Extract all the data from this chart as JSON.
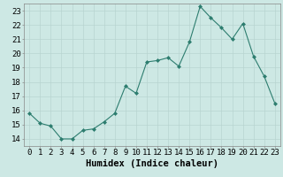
{
  "x": [
    0,
    1,
    2,
    3,
    4,
    5,
    6,
    7,
    8,
    9,
    10,
    11,
    12,
    13,
    14,
    15,
    16,
    17,
    18,
    19,
    20,
    21,
    22,
    23
  ],
  "y": [
    15.8,
    15.1,
    14.9,
    14.0,
    14.0,
    14.6,
    14.7,
    15.2,
    15.8,
    17.7,
    17.2,
    19.4,
    19.5,
    19.7,
    19.1,
    20.8,
    23.3,
    22.5,
    21.8,
    21.0,
    22.1,
    19.8,
    18.4,
    16.5
  ],
  "xlabel": "Humidex (Indice chaleur)",
  "ylim": [
    13.5,
    23.5
  ],
  "xlim": [
    -0.5,
    23.5
  ],
  "yticks": [
    14,
    15,
    16,
    17,
    18,
    19,
    20,
    21,
    22,
    23
  ],
  "xticks": [
    0,
    1,
    2,
    3,
    4,
    5,
    6,
    7,
    8,
    9,
    10,
    11,
    12,
    13,
    14,
    15,
    16,
    17,
    18,
    19,
    20,
    21,
    22,
    23
  ],
  "line_color": "#2d7d6f",
  "marker_color": "#2d7d6f",
  "bg_color": "#cde8e4",
  "grid_color": "#b8d4d0",
  "tick_label_fontsize": 6.5,
  "xlabel_fontsize": 7.5
}
